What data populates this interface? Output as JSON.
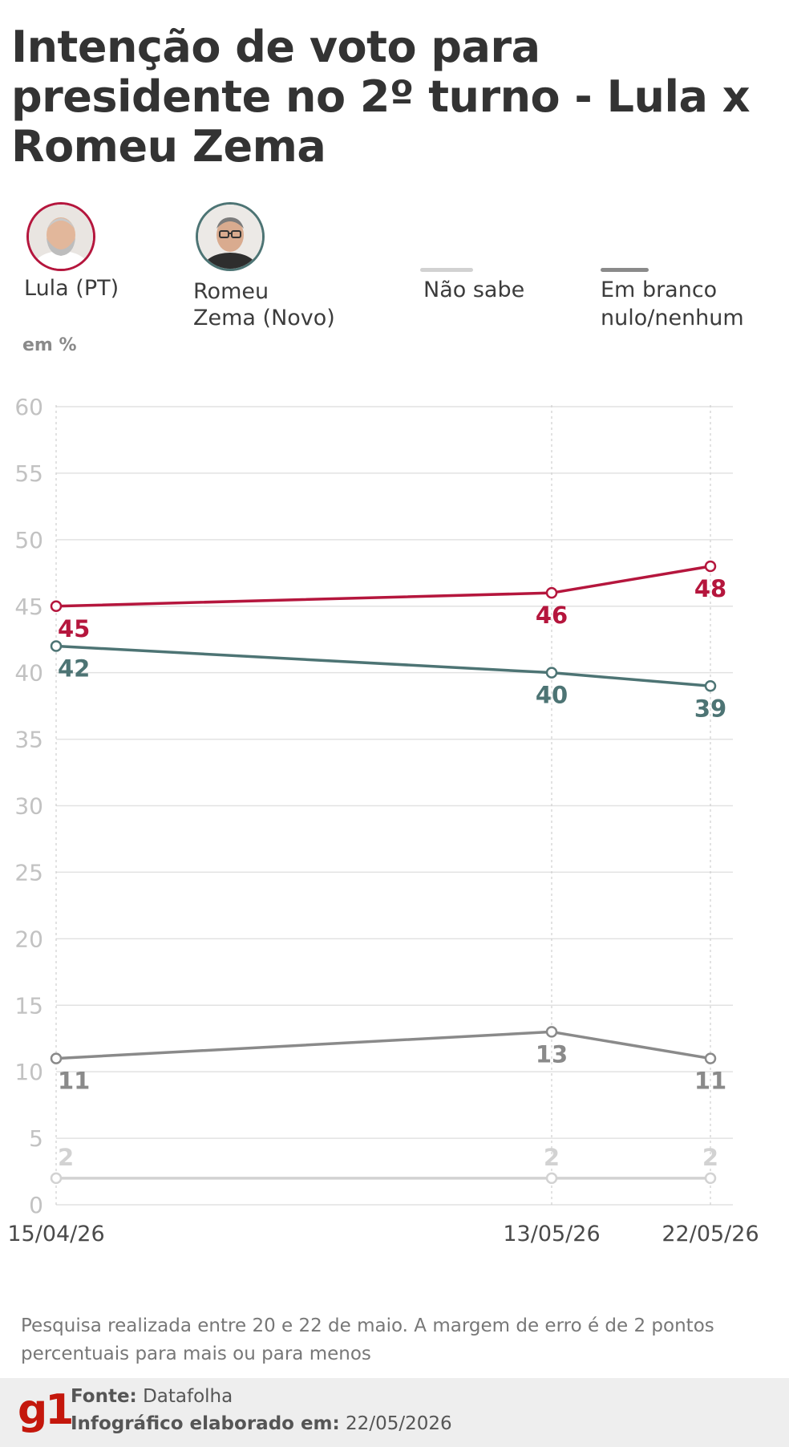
{
  "title": "Intenção de voto para presidente no 2º turno - Lula x Romeu Zema",
  "legend": {
    "lula": "Lula (PT)",
    "zema_line1": "Romeu",
    "zema_line2": "Zema (Novo)",
    "nao_sabe": "Não sabe",
    "branco_line1": "Em branco",
    "branco_line2": "nulo/nenhum"
  },
  "unit": "em %",
  "chart_data": {
    "type": "line",
    "x": [
      "15/04/26",
      "13/05/26",
      "22/05/26"
    ],
    "ylim": [
      0,
      60
    ],
    "yticks": [
      0,
      5,
      10,
      15,
      20,
      25,
      30,
      35,
      40,
      45,
      50,
      55,
      60
    ],
    "grid": true,
    "series": [
      {
        "name": "Lula (PT)",
        "color": "#b5163d",
        "values": [
          45,
          46,
          48
        ],
        "label_pos": [
          "below",
          "below",
          "below"
        ]
      },
      {
        "name": "Romeu Zema (Novo)",
        "color": "#4d7474",
        "values": [
          42,
          40,
          39
        ],
        "label_pos": [
          "below",
          "below",
          "below"
        ]
      },
      {
        "name": "Em branco nulo/nenhum",
        "color": "#8a8a8a",
        "values": [
          11,
          13,
          11
        ],
        "label_pos": [
          "below",
          "below",
          "below"
        ]
      },
      {
        "name": "Não sabe",
        "color": "#d2d2d2",
        "values": [
          2,
          2,
          2
        ],
        "label_pos": [
          "above",
          "above",
          "above"
        ]
      }
    ]
  },
  "colors": {
    "lula": "#b5163d",
    "zema": "#4d7474",
    "branco": "#8a8a8a",
    "nao_sabe": "#d2d2d2",
    "brand": "#c4170c"
  },
  "note": "Pesquisa realizada entre 20 e 22 de maio. A margem de erro é de 2 pontos percentuais para mais ou para menos",
  "footer": {
    "logo": "g1",
    "source_label": "Fonte:",
    "source_value": "Datafolha",
    "date_label": "Infográfico elaborado em:",
    "date_value": "22/05/2026"
  }
}
